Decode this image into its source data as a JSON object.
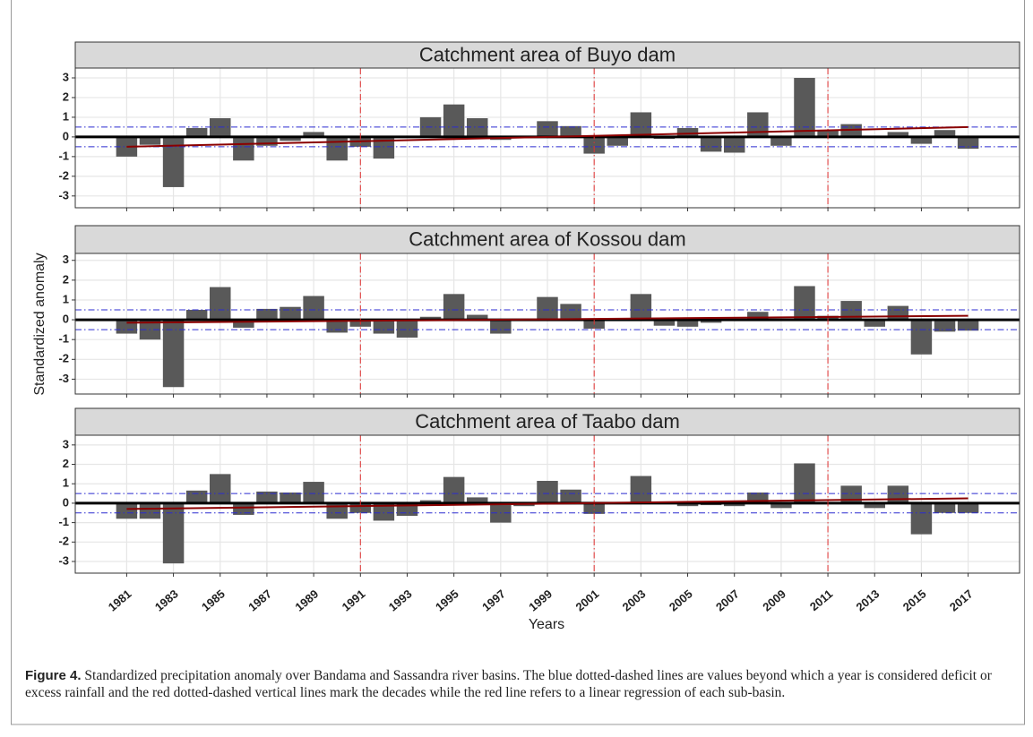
{
  "figure": {
    "xlabel": "Years",
    "ylabel": "Standardized anomaly",
    "caption": {
      "label": "Figure 4.",
      "text": "Standardized precipitation anomaly over Bandama and Sassandra river basins. The blue dotted-dashed lines are values beyond which a year is considered deficit or excess rainfall and the red dotted-dashed vertical lines mark the decades while the red line refers to a linear regression of each sub-basin."
    }
  },
  "chart_data": [
    {
      "type": "bar",
      "title": "Catchment area of Buyo dam",
      "color": "#595959",
      "grid": true,
      "x": [
        1981,
        1982,
        1983,
        1984,
        1985,
        1986,
        1987,
        1988,
        1989,
        1990,
        1991,
        1992,
        1993,
        1994,
        1995,
        1996,
        1997,
        1998,
        1999,
        2000,
        2001,
        2002,
        2003,
        2004,
        2005,
        2006,
        2007,
        2008,
        2009,
        2010,
        2011,
        2012,
        2013,
        2014,
        2015,
        2016,
        2017
      ],
      "values": [
        -1.0,
        -0.4,
        -2.55,
        0.45,
        0.95,
        -1.2,
        -0.45,
        -0.2,
        0.25,
        -1.2,
        -0.5,
        -1.1,
        -0.05,
        1.0,
        1.65,
        0.95,
        -0.15,
        0.02,
        0.8,
        0.55,
        -0.85,
        -0.45,
        1.25,
        -0.1,
        0.45,
        -0.75,
        -0.8,
        1.25,
        -0.45,
        3.0,
        0.35,
        0.65,
        -0.05,
        0.25,
        -0.35,
        0.35,
        -0.6
      ],
      "xlim": [
        1978.8,
        2019.2
      ],
      "xticks": [
        1981,
        1983,
        1985,
        1987,
        1989,
        1991,
        1993,
        1995,
        1997,
        1999,
        2001,
        2003,
        2005,
        2007,
        2009,
        2011,
        2013,
        2015,
        2017
      ],
      "ylim": [
        -3.6,
        3.5
      ],
      "yticks": [
        -3,
        -2,
        -1,
        0,
        1,
        2,
        3
      ],
      "hlines": {
        "values": [
          -0.5,
          0.5
        ],
        "color": "#2b2bd0"
      },
      "vlines": {
        "values": [
          1991,
          2001,
          2011
        ],
        "color": "#e03030"
      },
      "trend": {
        "x": [
          1981,
          2017
        ],
        "values": [
          -0.5,
          0.5
        ],
        "color": "#8b0000"
      }
    },
    {
      "type": "bar",
      "title": "Catchment area of Kossou dam",
      "color": "#595959",
      "grid": true,
      "x": [
        1981,
        1982,
        1983,
        1984,
        1985,
        1986,
        1987,
        1988,
        1989,
        1990,
        1991,
        1992,
        1993,
        1994,
        1995,
        1996,
        1997,
        1998,
        1999,
        2000,
        2001,
        2002,
        2003,
        2004,
        2005,
        2006,
        2007,
        2008,
        2009,
        2010,
        2011,
        2012,
        2013,
        2014,
        2015,
        2016,
        2017
      ],
      "values": [
        -0.7,
        -1.0,
        -3.4,
        0.5,
        1.65,
        -0.4,
        0.55,
        0.65,
        1.2,
        -0.65,
        -0.35,
        -0.7,
        -0.9,
        0.15,
        1.3,
        0.25,
        -0.7,
        0.02,
        1.15,
        0.8,
        -0.45,
        0.05,
        1.3,
        -0.3,
        -0.35,
        -0.15,
        0.05,
        0.4,
        0.05,
        1.7,
        0.2,
        0.95,
        -0.35,
        0.7,
        -1.75,
        -0.6,
        -0.55
      ],
      "xlim": [
        1978.8,
        2019.2
      ],
      "xticks": [
        1981,
        1983,
        1985,
        1987,
        1989,
        1991,
        1993,
        1995,
        1997,
        1999,
        2001,
        2003,
        2005,
        2007,
        2009,
        2011,
        2013,
        2015,
        2017
      ],
      "ylim": [
        -3.75,
        3.35
      ],
      "yticks": [
        -3,
        -2,
        -1,
        0,
        1,
        2,
        3
      ],
      "hlines": {
        "values": [
          -0.5,
          0.5
        ],
        "color": "#2b2bd0"
      },
      "vlines": {
        "values": [
          1991,
          2001,
          2011
        ],
        "color": "#e03030"
      },
      "trend": {
        "x": [
          1981,
          2017
        ],
        "values": [
          -0.15,
          0.2
        ],
        "color": "#8b0000"
      }
    },
    {
      "type": "bar",
      "title": "Catchment area of Taabo dam",
      "color": "#595959",
      "grid": true,
      "x": [
        1981,
        1982,
        1983,
        1984,
        1985,
        1986,
        1987,
        1988,
        1989,
        1990,
        1991,
        1992,
        1993,
        1994,
        1995,
        1996,
        1997,
        1998,
        1999,
        2000,
        2001,
        2002,
        2003,
        2004,
        2005,
        2006,
        2007,
        2008,
        2009,
        2010,
        2011,
        2012,
        2013,
        2014,
        2015,
        2016,
        2017
      ],
      "values": [
        -0.8,
        -0.8,
        -3.1,
        0.65,
        1.5,
        -0.6,
        0.6,
        0.55,
        1.1,
        -0.8,
        -0.5,
        -0.9,
        -0.65,
        0.15,
        1.35,
        0.3,
        -1.0,
        -0.15,
        1.15,
        0.7,
        -0.55,
        0.02,
        1.4,
        0.02,
        -0.15,
        -0.1,
        -0.15,
        0.55,
        -0.25,
        2.05,
        0.05,
        0.9,
        -0.25,
        0.9,
        -1.6,
        -0.5,
        -0.5
      ],
      "xlim": [
        1978.8,
        2019.2
      ],
      "xticks": [
        1981,
        1983,
        1985,
        1987,
        1989,
        1991,
        1993,
        1995,
        1997,
        1999,
        2001,
        2003,
        2005,
        2007,
        2009,
        2011,
        2013,
        2015,
        2017
      ],
      "ylim": [
        -3.6,
        3.5
      ],
      "yticks": [
        -3,
        -2,
        -1,
        0,
        1,
        2,
        3
      ],
      "hlines": {
        "values": [
          -0.5,
          0.5
        ],
        "color": "#2b2bd0"
      },
      "vlines": {
        "values": [
          1991,
          2001,
          2011
        ],
        "color": "#e03030"
      },
      "trend": {
        "x": [
          1981,
          2017
        ],
        "values": [
          -0.3,
          0.25
        ],
        "color": "#8b0000"
      }
    }
  ]
}
